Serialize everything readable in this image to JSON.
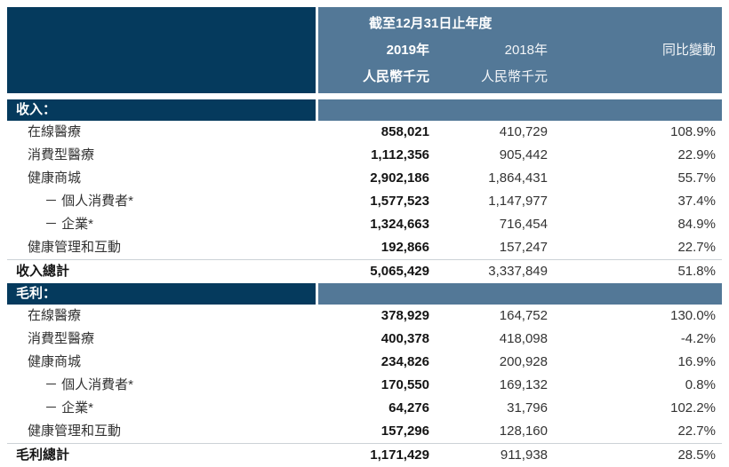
{
  "header": {
    "period_title": "截至12月31日止年度",
    "col_2019": "2019年",
    "col_2018": "2018年",
    "col_change": "同比變動",
    "unit_2019": "人民幣千元",
    "unit_2018": "人民幣千元"
  },
  "colors": {
    "navy": "#053a5d",
    "steel_blue": "#537897",
    "text": "#333333",
    "bold_text": "#141414"
  },
  "sections": [
    {
      "title": "收入：",
      "rows": [
        {
          "label": "在線醫療",
          "v2019": "858,021",
          "v2018": "410,729",
          "change": "108.9%"
        },
        {
          "label": "消費型醫療",
          "v2019": "1,112,356",
          "v2018": "905,442",
          "change": "22.9%"
        },
        {
          "label": "健康商城",
          "v2019": "2,902,186",
          "v2018": "1,864,431",
          "change": "55.7%"
        },
        {
          "label": "－ 個人消費者*",
          "v2019": "1,577,523",
          "v2018": "1,147,977",
          "change": "37.4%"
        },
        {
          "label": "－ 企業*",
          "v2019": "1,324,663",
          "v2018": "716,454",
          "change": "84.9%"
        },
        {
          "label": "健康管理和互動",
          "v2019": "192,866",
          "v2018": "157,247",
          "change": "22.7%"
        }
      ],
      "total": {
        "label": "收入總計",
        "v2019": "5,065,429",
        "v2018": "3,337,849",
        "change": "51.8%"
      }
    },
    {
      "title": "毛利：",
      "rows": [
        {
          "label": "在線醫療",
          "v2019": "378,929",
          "v2018": "164,752",
          "change": "130.0%"
        },
        {
          "label": "消費型醫療",
          "v2019": "400,378",
          "v2018": "418,098",
          "change": "-4.2%"
        },
        {
          "label": "健康商城",
          "v2019": "234,826",
          "v2018": "200,928",
          "change": "16.9%"
        },
        {
          "label": "－ 個人消費者*",
          "v2019": "170,550",
          "v2018": "169,132",
          "change": "0.8%"
        },
        {
          "label": "－ 企業*",
          "v2019": "64,276",
          "v2018": "31,796",
          "change": "102.2%"
        },
        {
          "label": "健康管理和互動",
          "v2019": "157,296",
          "v2018": "128,160",
          "change": "22.7%"
        }
      ],
      "total": {
        "label": "毛利總計",
        "v2019": "1,171,429",
        "v2018": "911,938",
        "change": "28.5%"
      }
    }
  ]
}
